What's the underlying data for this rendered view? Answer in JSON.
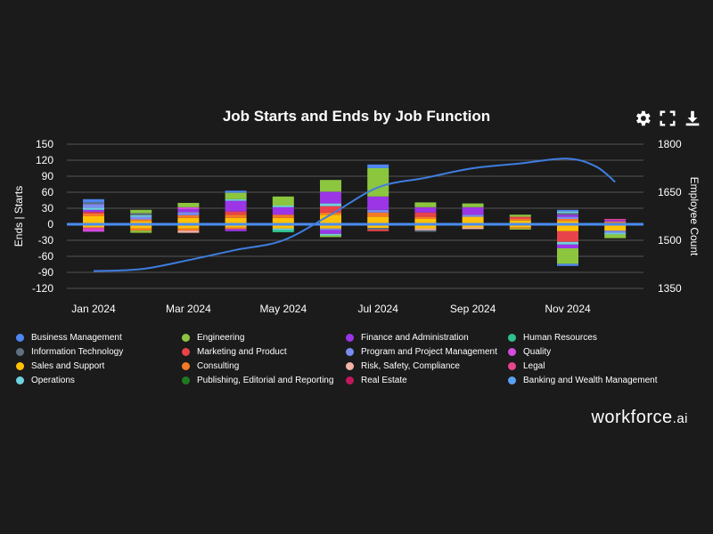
{
  "title": "Job Starts and Ends by Job Function",
  "toolbar": {
    "settings_icon": "gear-icon",
    "expand_icon": "fullscreen-icon",
    "download_icon": "download-icon"
  },
  "brand": {
    "name": "workforce",
    "suffix": ".ai"
  },
  "colors": {
    "background": "#1b1b1b",
    "zero_line": "#4a8cf0",
    "employee_line": "#3f7de0",
    "grid": "#555555"
  },
  "chart_data": {
    "type": "bar",
    "title": "Job Starts and Ends by Job Function",
    "ylabel": "Ends | Starts",
    "y2label": "Employee Count",
    "ylim": [
      -120,
      150
    ],
    "yticks": [
      -120,
      -90,
      -60,
      -30,
      0,
      30,
      60,
      90,
      120,
      150
    ],
    "y2lim": [
      1350,
      1800
    ],
    "y2ticks": [
      1350,
      1500,
      1650,
      1800
    ],
    "months": [
      "Jan 2024",
      "Feb 2024",
      "Mar 2024",
      "Apr 2024",
      "May 2024",
      "Jun 2024",
      "Jul 2024",
      "Aug 2024",
      "Sep 2024",
      "Oct 2024",
      "Nov 2024",
      "Dec 2024"
    ],
    "xticklabels": [
      "Jan 2024",
      "Mar 2024",
      "May 2024",
      "Jul 2024",
      "Sep 2024",
      "Nov 2024"
    ],
    "functions": [
      {
        "name": "Business Management",
        "color": "#4f86f0"
      },
      {
        "name": "Engineering",
        "color": "#8cc63f"
      },
      {
        "name": "Finance and Administration",
        "color": "#9b35e6"
      },
      {
        "name": "Human Resources",
        "color": "#2ec08b"
      },
      {
        "name": "Information Technology",
        "color": "#607080"
      },
      {
        "name": "Marketing and Product",
        "color": "#e8424a"
      },
      {
        "name": "Program and Project Management",
        "color": "#7b8cf0"
      },
      {
        "name": "Quality",
        "color": "#d34bdf"
      },
      {
        "name": "Sales and Support",
        "color": "#ffc107"
      },
      {
        "name": "Consulting",
        "color": "#f57a26"
      },
      {
        "name": "Risk, Safety, Compliance",
        "color": "#f5b3a8"
      },
      {
        "name": "Legal",
        "color": "#e8458c"
      },
      {
        "name": "Operations",
        "color": "#6ed3e0"
      },
      {
        "name": "Publishing, Editorial and Reporting",
        "color": "#1f7a1f"
      },
      {
        "name": "Real Estate",
        "color": "#c2185b"
      },
      {
        "name": "Banking and Wealth Management",
        "color": "#5aa0f0"
      }
    ],
    "starts": [
      [
        {
          "f": "Sales and Support",
          "v": 15
        },
        {
          "f": "Consulting",
          "v": 5
        },
        {
          "f": "Marketing and Product",
          "v": 3
        },
        {
          "f": "Finance and Administration",
          "v": 4
        },
        {
          "f": "Operations",
          "v": 4
        },
        {
          "f": "Program and Project Management",
          "v": 7
        },
        {
          "f": "Information Technology",
          "v": 3
        },
        {
          "f": "Business Management",
          "v": 6
        }
      ],
      [
        {
          "f": "Sales and Support",
          "v": 6
        },
        {
          "f": "Consulting",
          "v": 3
        },
        {
          "f": "Program and Project Management",
          "v": 5
        },
        {
          "f": "Operations",
          "v": 3
        },
        {
          "f": "Information Technology",
          "v": 4
        },
        {
          "f": "Engineering",
          "v": 6
        }
      ],
      [
        {
          "f": "Sales and Support",
          "v": 12
        },
        {
          "f": "Consulting",
          "v": 5
        },
        {
          "f": "Program and Project Management",
          "v": 6
        },
        {
          "f": "Finance and Administration",
          "v": 5
        },
        {
          "f": "Quality",
          "v": 4
        },
        {
          "f": "Engineering",
          "v": 8
        }
      ],
      [
        {
          "f": "Sales and Support",
          "v": 12
        },
        {
          "f": "Consulting",
          "v": 6
        },
        {
          "f": "Marketing and Product",
          "v": 6
        },
        {
          "f": "Finance and Administration",
          "v": 20
        },
        {
          "f": "Operations",
          "v": 3
        },
        {
          "f": "Engineering",
          "v": 12
        },
        {
          "f": "Business Management",
          "v": 4
        }
      ],
      [
        {
          "f": "Sales and Support",
          "v": 12
        },
        {
          "f": "Consulting",
          "v": 6
        },
        {
          "f": "Finance and Administration",
          "v": 14
        },
        {
          "f": "Operations",
          "v": 3
        },
        {
          "f": "Engineering",
          "v": 17
        }
      ],
      [
        {
          "f": "Sales and Support",
          "v": 18
        },
        {
          "f": "Consulting",
          "v": 4
        },
        {
          "f": "Marketing and Product",
          "v": 12
        },
        {
          "f": "Operations",
          "v": 5
        },
        {
          "f": "Finance and Administration",
          "v": 22
        },
        {
          "f": "Engineering",
          "v": 22
        }
      ],
      [
        {
          "f": "Sales and Support",
          "v": 14
        },
        {
          "f": "Consulting",
          "v": 8
        },
        {
          "f": "Program and Project Management",
          "v": 5
        },
        {
          "f": "Finance and Administration",
          "v": 25
        },
        {
          "f": "Engineering",
          "v": 53
        },
        {
          "f": "Business Management",
          "v": 7
        }
      ],
      [
        {
          "f": "Sales and Support",
          "v": 10
        },
        {
          "f": "Consulting",
          "v": 4
        },
        {
          "f": "Marketing and Product",
          "v": 8
        },
        {
          "f": "Finance and Administration",
          "v": 10
        },
        {
          "f": "Engineering",
          "v": 9
        }
      ],
      [
        {
          "f": "Sales and Support",
          "v": 14
        },
        {
          "f": "Program and Project Management",
          "v": 4
        },
        {
          "f": "Finance and Administration",
          "v": 14
        },
        {
          "f": "Engineering",
          "v": 7
        }
      ],
      [
        {
          "f": "Sales and Support",
          "v": 7
        },
        {
          "f": "Consulting",
          "v": 3
        },
        {
          "f": "Marketing and Product",
          "v": 4
        },
        {
          "f": "Engineering",
          "v": 4
        }
      ],
      [
        {
          "f": "Sales and Support",
          "v": 6
        },
        {
          "f": "Consulting",
          "v": 4
        },
        {
          "f": "Program and Project Management",
          "v": 4
        },
        {
          "f": "Finance and Administration",
          "v": 4
        },
        {
          "f": "Information Technology",
          "v": 3
        },
        {
          "f": "Operations",
          "v": 3
        },
        {
          "f": "Business Management",
          "v": 3
        }
      ],
      [
        {
          "f": "Sales and Support",
          "v": 3
        },
        {
          "f": "Consulting",
          "v": 2
        },
        {
          "f": "Finance and Administration",
          "v": 3
        },
        {
          "f": "Legal",
          "v": 2
        }
      ]
    ],
    "ends": [
      [
        {
          "f": "Sales and Support",
          "v": 6
        },
        {
          "f": "Legal",
          "v": 3
        },
        {
          "f": "Quality",
          "v": 5
        }
      ],
      [
        {
          "f": "Sales and Support",
          "v": 8
        },
        {
          "f": "Consulting",
          "v": 4
        },
        {
          "f": "Engineering",
          "v": 4
        }
      ],
      [
        {
          "f": "Sales and Support",
          "v": 8
        },
        {
          "f": "Consulting",
          "v": 4
        },
        {
          "f": "Risk, Safety, Compliance",
          "v": 4
        }
      ],
      [
        {
          "f": "Sales and Support",
          "v": 6
        },
        {
          "f": "Consulting",
          "v": 3
        },
        {
          "f": "Finance and Administration",
          "v": 4
        }
      ],
      [
        {
          "f": "Sales and Support",
          "v": 8
        },
        {
          "f": "Operations",
          "v": 3
        },
        {
          "f": "Human Resources",
          "v": 4
        }
      ],
      [
        {
          "f": "Sales and Support",
          "v": 8
        },
        {
          "f": "Program and Project Management",
          "v": 3
        },
        {
          "f": "Finance and Administration",
          "v": 7
        },
        {
          "f": "Operations",
          "v": 3
        },
        {
          "f": "Engineering",
          "v": 3
        }
      ],
      [
        {
          "f": "Sales and Support",
          "v": 7
        },
        {
          "f": "Information Technology",
          "v": 3
        },
        {
          "f": "Marketing and Product",
          "v": 3
        }
      ],
      [
        {
          "f": "Sales and Support",
          "v": 8
        },
        {
          "f": "Risk, Safety, Compliance",
          "v": 3
        },
        {
          "f": "Information Technology",
          "v": 3
        }
      ],
      [
        {
          "f": "Sales and Support",
          "v": 6
        },
        {
          "f": "Risk, Safety, Compliance",
          "v": 3
        }
      ],
      [
        {
          "f": "Sales and Support",
          "v": 6
        },
        {
          "f": "Consulting",
          "v": 2
        },
        {
          "f": "Engineering",
          "v": 2
        }
      ],
      [
        {
          "f": "Sales and Support",
          "v": 13
        },
        {
          "f": "Marketing and Product",
          "v": 20
        },
        {
          "f": "Operations",
          "v": 5
        },
        {
          "f": "Finance and Administration",
          "v": 7
        },
        {
          "f": "Engineering",
          "v": 29
        },
        {
          "f": "Business Management",
          "v": 4
        }
      ],
      [
        {
          "f": "Sales and Support",
          "v": 12
        },
        {
          "f": "Program and Project Management",
          "v": 4
        },
        {
          "f": "Operations",
          "v": 3
        },
        {
          "f": "Engineering",
          "v": 7
        }
      ]
    ],
    "employee_count": {
      "name": "Employee Count",
      "points": [
        {
          "t": 0.0,
          "v": 1404
        },
        {
          "t": 1.0,
          "v": 1410
        },
        {
          "t": 2.0,
          "v": 1438
        },
        {
          "t": 3.0,
          "v": 1470
        },
        {
          "t": 4.0,
          "v": 1500
        },
        {
          "t": 5.0,
          "v": 1580
        },
        {
          "t": 6.0,
          "v": 1665
        },
        {
          "t": 7.0,
          "v": 1695
        },
        {
          "t": 8.0,
          "v": 1725
        },
        {
          "t": 9.0,
          "v": 1740
        },
        {
          "t": 10.0,
          "v": 1755
        },
        {
          "t": 10.6,
          "v": 1730
        },
        {
          "t": 11.0,
          "v": 1682
        }
      ]
    }
  },
  "legend": [
    "Business Management",
    "Engineering",
    "Finance and Administration",
    "Human Resources",
    "Information Technology",
    "Marketing and Product",
    "Program and Project Management",
    "Quality",
    "Sales and Support",
    "Consulting",
    "Risk, Safety, Compliance",
    "Legal",
    "Operations",
    "Publishing, Editorial and Reporting",
    "Real Estate",
    "Banking and Wealth Management"
  ]
}
